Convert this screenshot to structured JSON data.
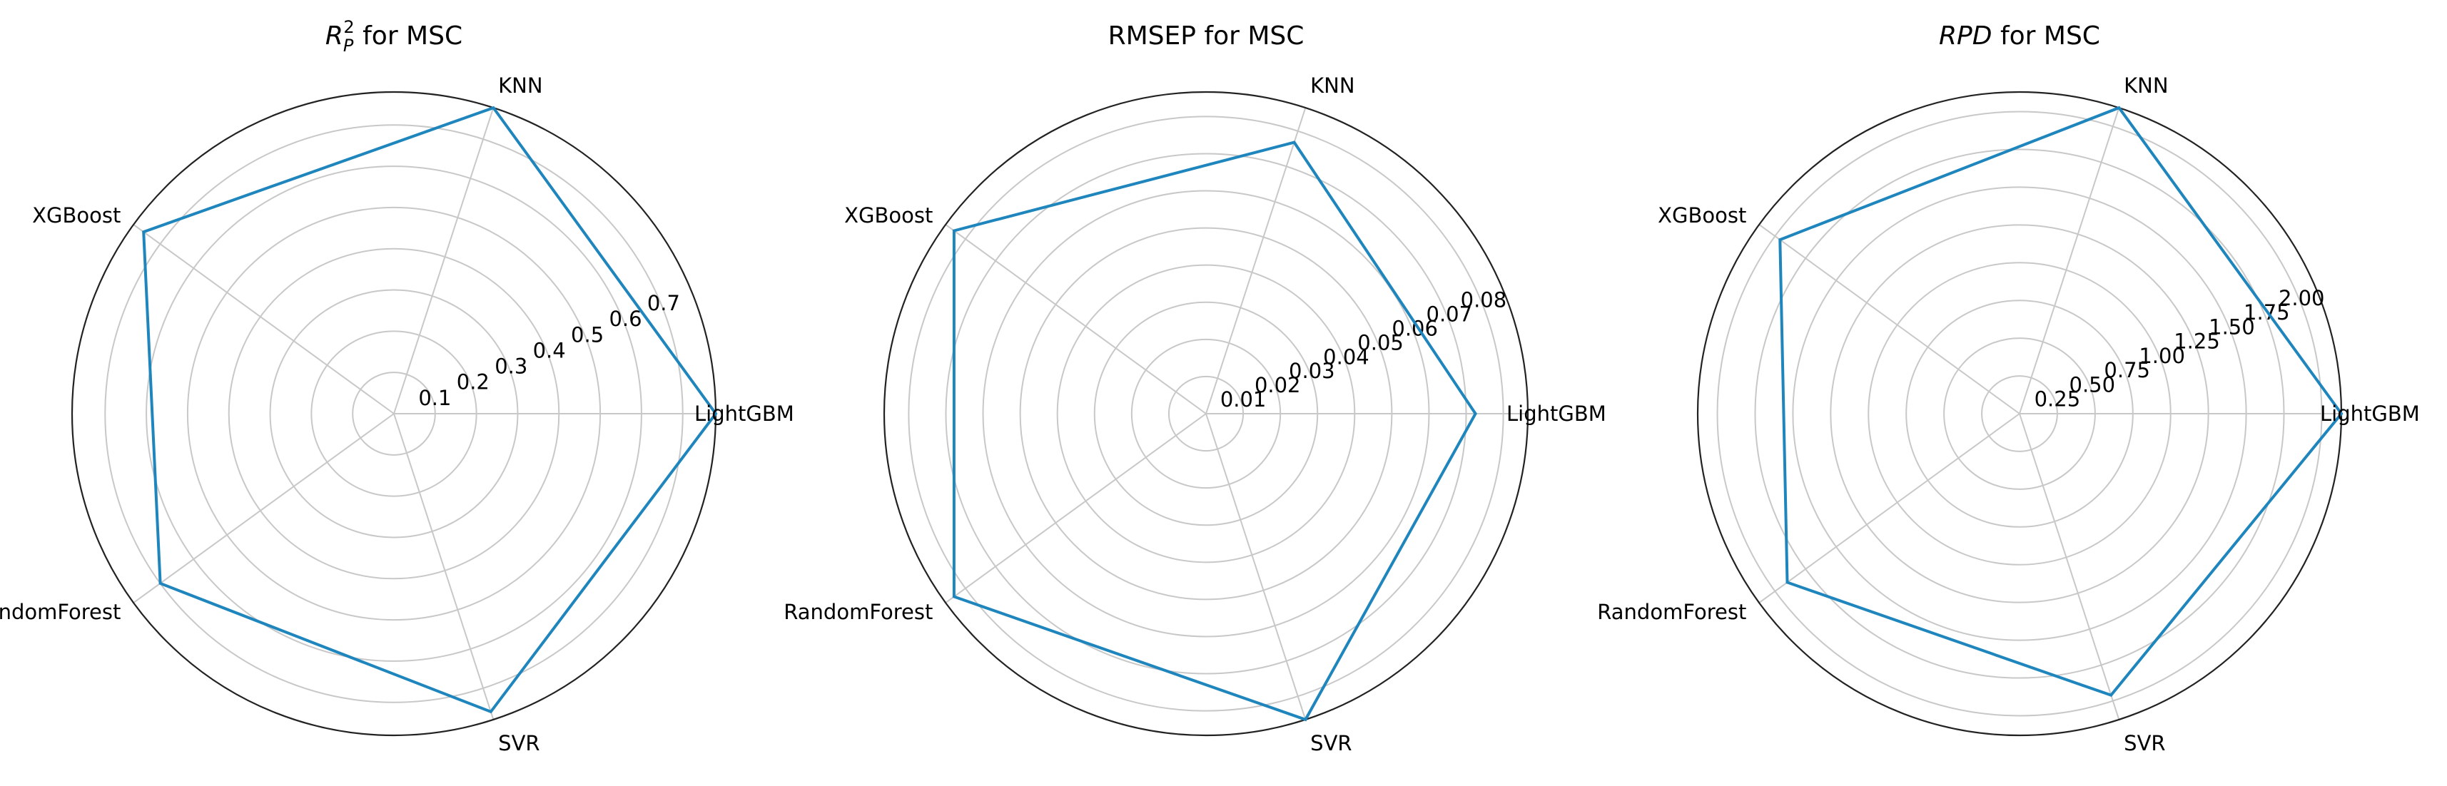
{
  "colors": {
    "series": "#1f86bd",
    "grid": "#c8c8c8",
    "frame": "#222222"
  },
  "chart_data": [
    {
      "type": "radar",
      "title": "R",
      "title_sub": "P",
      "title_sup": "2",
      "title_rest": " for MSC",
      "categories": [
        "LightGBM",
        "KNN",
        "XGBoost",
        "RandomForest",
        "SVR"
      ],
      "values": [
        0.78,
        0.78,
        0.75,
        0.7,
        0.76
      ],
      "rmax": 0.78,
      "tick_values": [
        0.1,
        0.2,
        0.3,
        0.4,
        0.5,
        0.6,
        0.7
      ],
      "tick_labels": [
        "0.1",
        "0.2",
        "0.3",
        "0.4",
        "0.5",
        "0.6",
        "0.7"
      ],
      "grid": true
    },
    {
      "type": "radar",
      "title": "RMSEP for MSC",
      "categories": [
        "LightGBM",
        "KNN",
        "XGBoost",
        "RandomForest",
        "SVR"
      ],
      "values": [
        0.0725,
        0.0768,
        0.0838,
        0.0838,
        0.0866
      ],
      "rmax": 0.0866,
      "tick_values": [
        0.01,
        0.02,
        0.03,
        0.04,
        0.05,
        0.06,
        0.07,
        0.08
      ],
      "tick_labels": [
        "0.01",
        "0.02",
        "0.03",
        "0.04",
        "0.05",
        "0.06",
        "0.07",
        "0.08"
      ],
      "grid": true
    },
    {
      "type": "radar",
      "title": "RPD",
      "title_rest": " for MSC",
      "categories": [
        "LightGBM",
        "KNN",
        "XGBoost",
        "RandomForest",
        "SVR"
      ],
      "values": [
        2.13,
        2.13,
        1.96,
        1.9,
        1.96
      ],
      "rmax": 2.13,
      "tick_values": [
        0.25,
        0.5,
        0.75,
        1.0,
        1.25,
        1.5,
        1.75,
        2.0
      ],
      "tick_labels": [
        "0.25",
        "0.50",
        "0.75",
        "1.00",
        "1.25",
        "1.50",
        "1.75",
        "2.00"
      ],
      "grid": true
    }
  ]
}
